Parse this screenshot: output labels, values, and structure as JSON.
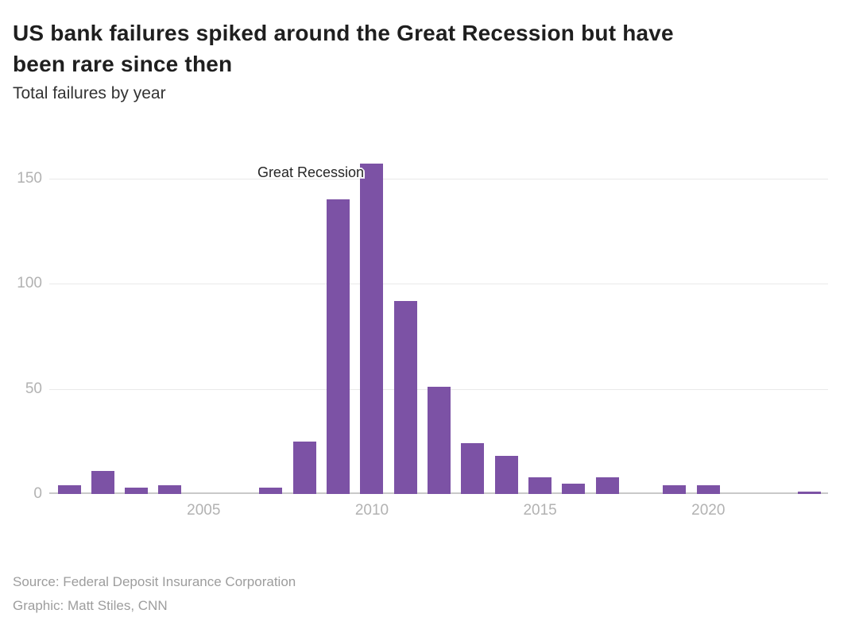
{
  "header": {
    "title_line1": "US bank failures spiked around the Great Recession but have",
    "title_line2": "been rare since then",
    "subtitle": "Total failures by year"
  },
  "annotation": {
    "label": "Great Recession"
  },
  "footer": {
    "source": "Source: Federal Deposit Insurance Corporation",
    "credit": "Graphic: Matt Stiles, CNN"
  },
  "colors": {
    "bar": "#7c52a5",
    "gridline": "#e9e9e9",
    "axis_line": "#c9c9c9",
    "axis_label": "#b2b2b2",
    "title": "#1f1f1f",
    "subtitle": "#333333",
    "annotation": "#262626",
    "footer": "#9d9d9d"
  },
  "chart_data": {
    "type": "bar",
    "title": "US bank failures spiked around the Great Recession but have been rare since then",
    "subtitle": "Total failures by year",
    "xlabel": "",
    "ylabel": "",
    "categories": [
      2001,
      2002,
      2003,
      2004,
      2005,
      2006,
      2007,
      2008,
      2009,
      2010,
      2011,
      2012,
      2013,
      2014,
      2015,
      2016,
      2017,
      2018,
      2019,
      2020,
      2021,
      2022,
      2023
    ],
    "values": [
      4,
      11,
      3,
      4,
      0,
      0,
      3,
      25,
      140,
      157,
      92,
      51,
      24,
      18,
      8,
      5,
      8,
      0,
      4,
      4,
      0,
      0,
      1
    ],
    "ylim": [
      0,
      157
    ],
    "y_ticks": [
      0,
      50,
      100,
      150
    ],
    "x_ticks": [
      2005,
      2010,
      2015,
      2020
    ],
    "grid": "horizontal-only",
    "legend": "none",
    "annotation": {
      "text": "Great Recession",
      "year": 2010
    }
  }
}
